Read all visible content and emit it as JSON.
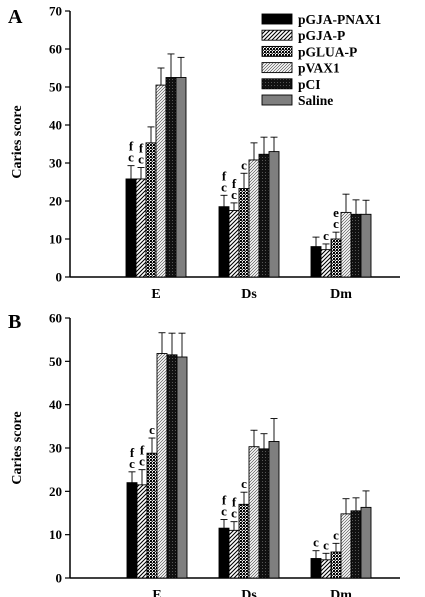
{
  "chart_data": [
    {
      "panel": "A",
      "type": "bar",
      "ylabel": "Caries score",
      "ylim": [
        0,
        70
      ],
      "yticks": [
        0,
        10,
        20,
        30,
        40,
        50,
        60,
        70
      ],
      "categories": [
        "E",
        "Ds",
        "Dm"
      ],
      "legend_position": "top-right",
      "series": [
        {
          "name": "pGJA-PNAX1",
          "pattern": "black",
          "values": [
            25.8,
            18.5,
            8.0
          ],
          "errors": [
            3.5,
            3.0,
            2.5
          ],
          "labels": [
            [
              "f",
              "c"
            ],
            [
              "f",
              "c"
            ],
            [
              ""
            ]
          ]
        },
        {
          "name": "pGJA-P",
          "pattern": "diag",
          "values": [
            25.8,
            17.5,
            7.2
          ],
          "errors": [
            3.0,
            2.0,
            1.5
          ],
          "labels": [
            [
              "f",
              "c"
            ],
            [
              "f",
              "c"
            ],
            [
              "c"
            ]
          ]
        },
        {
          "name": "pGLUA-P",
          "pattern": "dots",
          "values": [
            35.3,
            23.3,
            10.0
          ],
          "errors": [
            4.2,
            4.0,
            1.8
          ],
          "labels": [
            [
              ""
            ],
            [
              "c"
            ],
            [
              "e",
              "c"
            ]
          ]
        },
        {
          "name": "pVAX1",
          "pattern": "fine",
          "values": [
            50.5,
            30.8,
            17.0
          ],
          "errors": [
            4.5,
            4.5,
            4.8
          ],
          "labels": [
            [
              ""
            ],
            [
              ""
            ],
            [
              ""
            ]
          ]
        },
        {
          "name": "pCI",
          "pattern": "dark",
          "values": [
            52.5,
            32.3,
            16.5
          ],
          "errors": [
            6.2,
            4.5,
            3.8
          ],
          "labels": [
            [
              ""
            ],
            [
              ""
            ],
            [
              ""
            ]
          ]
        },
        {
          "name": "Saline",
          "pattern": "gray",
          "values": [
            52.5,
            33.0,
            16.5
          ],
          "errors": [
            5.3,
            3.8,
            3.7
          ],
          "labels": [
            [
              ""
            ],
            [
              ""
            ],
            [
              ""
            ]
          ]
        }
      ]
    },
    {
      "panel": "B",
      "type": "bar",
      "ylabel": "Caries score",
      "ylim": [
        0,
        60
      ],
      "yticks": [
        0,
        10,
        20,
        30,
        40,
        50,
        60
      ],
      "categories": [
        "E",
        "Ds",
        "Dm"
      ],
      "series": [
        {
          "name": "pGJA-PNAX1",
          "pattern": "black",
          "values": [
            22.0,
            11.5,
            4.5
          ],
          "errors": [
            2.5,
            2.0,
            1.8
          ],
          "labels": [
            [
              "f",
              "c"
            ],
            [
              "f",
              "c"
            ],
            [
              "c"
            ]
          ]
        },
        {
          "name": "pGJA-P",
          "pattern": "diag",
          "values": [
            21.5,
            11.0,
            4.2
          ],
          "errors": [
            3.5,
            2.0,
            1.5
          ],
          "labels": [
            [
              "f",
              "c"
            ],
            [
              "f",
              "c"
            ],
            [
              "c"
            ]
          ]
        },
        {
          "name": "pGLUA-P",
          "pattern": "dots",
          "values": [
            28.8,
            17.0,
            6.0
          ],
          "errors": [
            3.5,
            2.8,
            2.0
          ],
          "labels": [
            [
              "c"
            ],
            [
              "c"
            ],
            [
              "c"
            ]
          ]
        },
        {
          "name": "pVAX1",
          "pattern": "fine",
          "values": [
            51.8,
            30.3,
            14.8
          ],
          "errors": [
            4.8,
            3.8,
            3.5
          ],
          "labels": [
            [
              ""
            ],
            [
              ""
            ],
            [
              ""
            ]
          ]
        },
        {
          "name": "pCI",
          "pattern": "dark",
          "values": [
            51.5,
            29.8,
            15.5
          ],
          "errors": [
            5.0,
            3.5,
            3.0
          ],
          "labels": [
            [
              ""
            ],
            [
              ""
            ],
            [
              ""
            ]
          ]
        },
        {
          "name": "Saline",
          "pattern": "gray",
          "values": [
            51.0,
            31.5,
            16.3
          ],
          "errors": [
            5.5,
            5.3,
            3.8
          ],
          "labels": [
            [
              ""
            ],
            [
              ""
            ],
            [
              ""
            ]
          ]
        }
      ]
    }
  ]
}
